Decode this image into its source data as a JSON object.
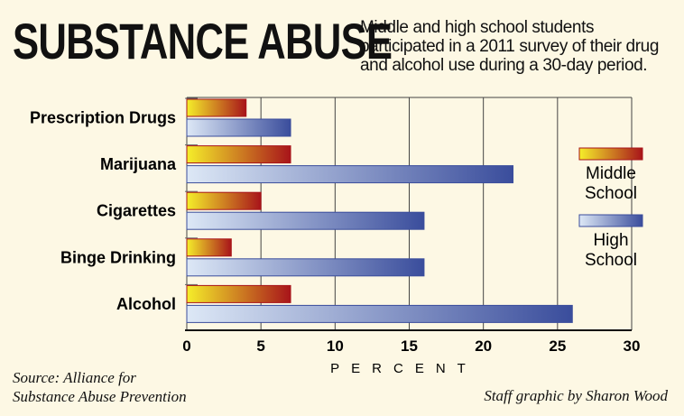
{
  "header": {
    "title": "SUBSTANCE ABUSE",
    "subtitle": "Middle and high school students participated in a 2011 survey of their drug and alcohol use during a 30-day period."
  },
  "footer": {
    "source_line1": "Source: Alliance for",
    "source_line2": "Substance Abuse Prevention",
    "credit": "Staff graphic by Sharon Wood"
  },
  "colors": {
    "middle_start": "#f5ee2a",
    "middle_end": "#a8141a",
    "high_start": "#dde8f6",
    "high_end": "#3a4d9c",
    "background": "#fdf8e4",
    "grid": "#444444"
  },
  "chart_data": {
    "type": "bar",
    "orientation": "horizontal",
    "categories": [
      "Prescription Drugs",
      "Marijuana",
      "Cigarettes",
      "Binge Drinking",
      "Alcohol"
    ],
    "series": [
      {
        "name": "Middle School",
        "legend_lines": [
          "Middle",
          "School"
        ],
        "values": [
          4,
          7,
          5,
          3,
          7
        ]
      },
      {
        "name": "High School",
        "legend_lines": [
          "High",
          "School"
        ],
        "values": [
          7,
          22,
          16,
          16,
          26
        ]
      }
    ],
    "xlabel": "PERCENT",
    "xlim": [
      0,
      30
    ],
    "xticks": [
      0,
      5,
      10,
      15,
      20,
      25,
      30
    ],
    "grid": true,
    "legend_position": "right"
  }
}
